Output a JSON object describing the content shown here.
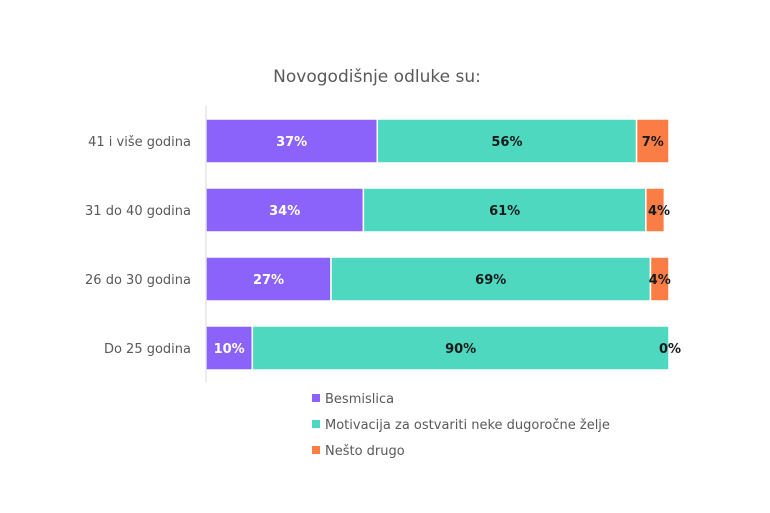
{
  "chart_data": {
    "type": "bar",
    "orientation": "horizontal",
    "stacked": true,
    "title": "Novogodišnje odluke su:",
    "xlabel": "",
    "ylabel": "",
    "xlim": [
      0,
      100
    ],
    "grid": false,
    "legend_position": "bottom",
    "categories": [
      "41 i više godina",
      "31 do 40 godina",
      "26 do 30 godina",
      "Do 25 godina"
    ],
    "series": [
      {
        "name": "Besmislica",
        "color": "#8B63FA",
        "label_color": "#ffffff",
        "values": [
          37,
          34,
          27,
          10
        ],
        "labels": [
          "37%",
          "34%",
          "27%",
          "10%"
        ]
      },
      {
        "name": "Motivacija za ostvariti neke dugoročne želje",
        "color": "#4ED8BF",
        "label_color": "#1a1a1a",
        "values": [
          56,
          61,
          69,
          90
        ],
        "labels": [
          "56%",
          "61%",
          "69%",
          "90%"
        ]
      },
      {
        "name": "Nešto drugo",
        "color": "#FA7D45",
        "label_color": "#1a1a1a",
        "values": [
          7,
          4,
          4,
          0
        ],
        "labels": [
          "7%",
          "4%",
          "4%",
          "0%"
        ]
      }
    ]
  }
}
